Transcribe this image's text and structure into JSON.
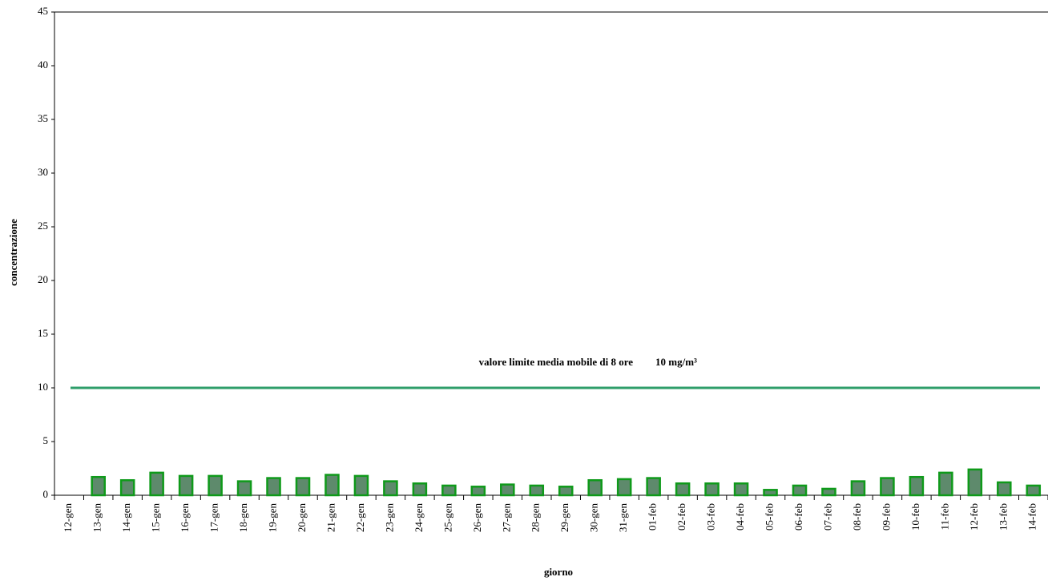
{
  "chart_data": {
    "type": "bar",
    "x_label": "giorno",
    "y_label": "concentrazione",
    "categories": [
      "12-gen",
      "13-gen",
      "14-gen",
      "15-gen",
      "16-gen",
      "17-gen",
      "18-gen",
      "19-gen",
      "20-gen",
      "21-gen",
      "22-gen",
      "23-gen",
      "24-gen",
      "25-gen",
      "26-gen",
      "27-gen",
      "28-gen",
      "29-gen",
      "30-gen",
      "31-gen",
      "01-feb",
      "02-feb",
      "03-feb",
      "04-feb",
      "05-feb",
      "06-feb",
      "07-feb",
      "08-feb",
      "09-feb",
      "10-feb",
      "11-feb",
      "12-feb",
      "13-feb",
      "14-feb"
    ],
    "values": [
      null,
      1.7,
      1.4,
      2.1,
      1.8,
      1.8,
      1.3,
      1.6,
      1.6,
      1.9,
      1.8,
      1.3,
      1.1,
      0.9,
      0.8,
      1.0,
      0.9,
      0.8,
      1.4,
      1.5,
      1.6,
      1.1,
      1.1,
      1.1,
      0.5,
      0.9,
      0.6,
      1.3,
      1.6,
      1.7,
      2.1,
      2.4,
      1.2,
      0.9
    ],
    "color": "#5e8a6c",
    "edge_color": "#0f9a1a",
    "limit": {
      "value": 10,
      "label": "10 mg/m³",
      "color": "#2e9e6a"
    },
    "annotation": "valore limite media mobile di 8 ore",
    "ylim": [
      0,
      45
    ],
    "yticks": [
      0,
      5,
      10,
      15,
      20,
      25,
      30,
      35,
      40,
      45
    ],
    "grid": false
  }
}
